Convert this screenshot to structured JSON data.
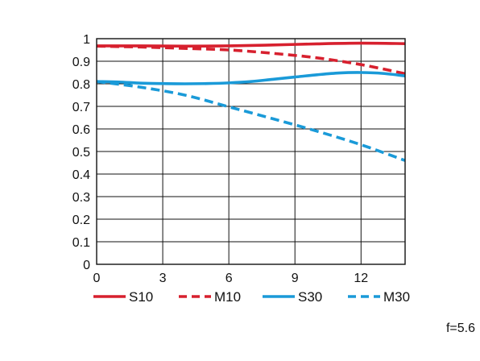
{
  "chart_data": {
    "type": "line",
    "xlim": [
      0,
      14
    ],
    "ylim": [
      0,
      1
    ],
    "x_ticks": [
      "0",
      "3",
      "6",
      "9",
      "12"
    ],
    "y_ticks": [
      "0",
      "0.1",
      "0.2",
      "0.3",
      "0.4",
      "0.5",
      "0.6",
      "0.7",
      "0.8",
      "0.9",
      "1"
    ],
    "grid": true,
    "legend_position": "bottom",
    "annotation": "f=5.6",
    "series": [
      {
        "name": "S10",
        "color": "#d7202e",
        "dash": "solid",
        "x": [
          0,
          2,
          4,
          6,
          8,
          10,
          12,
          14
        ],
        "y": [
          0.968,
          0.968,
          0.967,
          0.968,
          0.972,
          0.977,
          0.98,
          0.978
        ]
      },
      {
        "name": "M10",
        "color": "#d7202e",
        "dash": "dashed",
        "x": [
          0,
          2,
          4,
          6,
          8,
          10,
          12,
          14
        ],
        "y": [
          0.967,
          0.963,
          0.957,
          0.95,
          0.935,
          0.915,
          0.885,
          0.845
        ]
      },
      {
        "name": "S30",
        "color": "#1a9ad8",
        "dash": "solid",
        "x": [
          0,
          1,
          2,
          3,
          4,
          5,
          6,
          7,
          8,
          9,
          10,
          11,
          12,
          13,
          14
        ],
        "y": [
          0.81,
          0.808,
          0.803,
          0.801,
          0.8,
          0.801,
          0.804,
          0.81,
          0.82,
          0.83,
          0.84,
          0.848,
          0.85,
          0.846,
          0.835
        ]
      },
      {
        "name": "M30",
        "color": "#1a9ad8",
        "dash": "dashed",
        "x": [
          0,
          2,
          4,
          6,
          8,
          10,
          12,
          14
        ],
        "y": [
          0.81,
          0.785,
          0.75,
          0.698,
          0.645,
          0.59,
          0.53,
          0.46
        ]
      }
    ]
  }
}
